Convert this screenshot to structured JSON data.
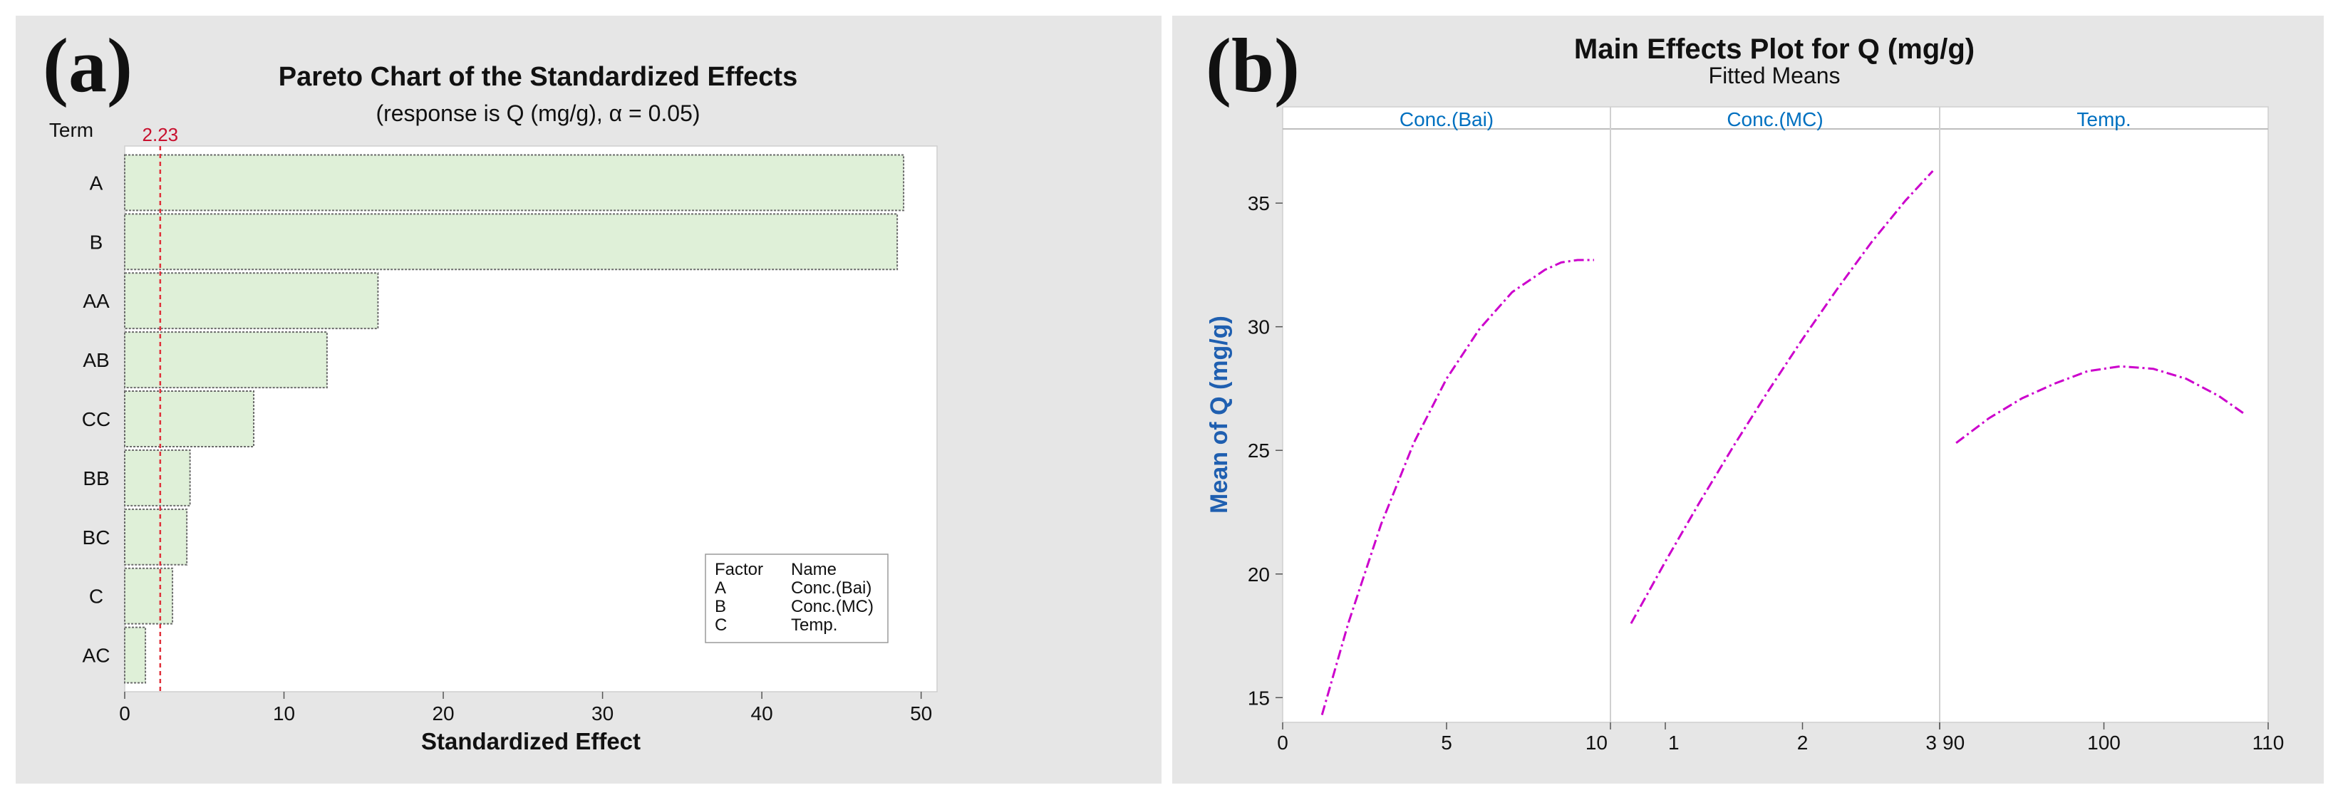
{
  "colors": {
    "panel_bg": "#e6e6e6",
    "plot_bg": "#ffffff",
    "bar_fill": "#dff0d8",
    "bar_stroke": "#6b6b6b",
    "ref_line": "#e0303a",
    "ref_label": "#c8102e",
    "main_curve": "#cc00cc",
    "facet_label": "#0070c0",
    "axis_label_b": "#1f5fb0"
  },
  "chart_data": [
    {
      "type": "bar",
      "orientation": "horizontal",
      "panel_label": "(a)",
      "title": "Pareto Chart of the Standardized Effects",
      "subtitle": "(response is Q (mg/g), α = 0.05)",
      "ylabel": "Term",
      "xlabel": "Standardized Effect",
      "categories": [
        "A",
        "B",
        "AA",
        "AB",
        "CC",
        "BB",
        "BC",
        "C",
        "AC"
      ],
      "values": [
        48.9,
        48.5,
        15.9,
        12.7,
        8.1,
        4.1,
        3.9,
        3.0,
        1.3
      ],
      "xlim": [
        0,
        51
      ],
      "xticks": [
        0,
        10,
        20,
        30,
        40,
        50
      ],
      "reference_line": {
        "value": 2.23,
        "label": "2.23"
      },
      "legend": {
        "placement": "bottom-right",
        "header": [
          "Factor",
          "Name"
        ],
        "rows": [
          [
            "A",
            "Conc.(Bai)"
          ],
          [
            "B",
            "Conc.(MC)"
          ],
          [
            "C",
            "Temp."
          ]
        ]
      }
    },
    {
      "type": "line",
      "panel_label": "(b)",
      "title": "Main Effects Plot for Q (mg/g)",
      "subtitle": "Fitted Means",
      "ylabel": "Mean of Q (mg/g)",
      "ylim": [
        14,
        38
      ],
      "yticks": [
        15,
        20,
        25,
        30,
        35
      ],
      "facets": [
        {
          "label": "Conc.(Bai)",
          "xlim": [
            0,
            10
          ],
          "xticks": [
            0,
            5,
            10
          ],
          "x": [
            1.2,
            2,
            3,
            4,
            5,
            6,
            7,
            8,
            8.5,
            9,
            9.5
          ],
          "y": [
            14.3,
            18.0,
            22.0,
            25.3,
            27.9,
            29.9,
            31.4,
            32.3,
            32.6,
            32.7,
            32.7
          ]
        },
        {
          "label": "Conc.(MC)",
          "xlim": [
            0.6,
            3
          ],
          "xticks": [
            1,
            2,
            3
          ],
          "x": [
            0.75,
            1.0,
            1.25,
            1.5,
            1.75,
            2.0,
            2.25,
            2.5,
            2.75,
            2.95
          ],
          "y": [
            18.0,
            20.5,
            22.9,
            25.2,
            27.4,
            29.5,
            31.5,
            33.4,
            35.1,
            36.3
          ]
        },
        {
          "label": "Temp.",
          "xlim": [
            90,
            110
          ],
          "xticks": [
            90,
            100,
            110
          ],
          "x": [
            91,
            93,
            95,
            97,
            99,
            101,
            103,
            105,
            107,
            108.5
          ],
          "y": [
            25.3,
            26.3,
            27.1,
            27.7,
            28.2,
            28.4,
            28.3,
            27.9,
            27.2,
            26.5
          ]
        }
      ]
    }
  ]
}
